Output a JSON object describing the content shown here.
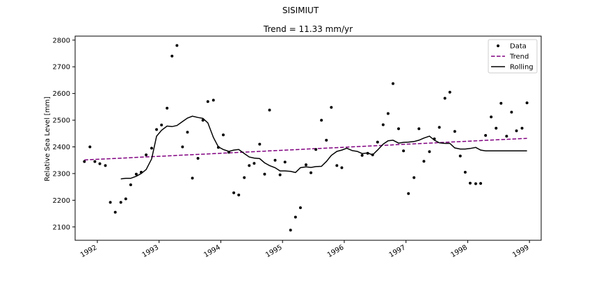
{
  "figure": {
    "suptitle": "SISIMIUT"
  },
  "chart_data": {
    "type": "scatter",
    "title": "Trend = 11.33 mm/yr",
    "xlabel": "",
    "ylabel": "Relative Sea Level [mm]",
    "xlim": [
      1991.64,
      1999.19
    ],
    "ylim": [
      2050,
      2815
    ],
    "xticks": [
      1992,
      1993,
      1994,
      1995,
      1996,
      1997,
      1998,
      1999
    ],
    "yticks": [
      2100,
      2200,
      2300,
      2400,
      2500,
      2600,
      2700,
      2800
    ],
    "grid": false,
    "legend_position": "top-right",
    "series": [
      {
        "name": "Data",
        "style": "points",
        "color": "#000000",
        "x": [
          1991.79,
          1991.88,
          1991.96,
          1992.04,
          1992.13,
          1992.21,
          1992.29,
          1992.38,
          1992.46,
          1992.54,
          1992.63,
          1992.71,
          1992.79,
          1992.88,
          1992.96,
          1993.04,
          1993.13,
          1993.21,
          1993.29,
          1993.38,
          1993.46,
          1993.54,
          1993.63,
          1993.71,
          1993.79,
          1993.88,
          1993.96,
          1994.04,
          1994.13,
          1994.21,
          1994.29,
          1994.38,
          1994.46,
          1994.54,
          1994.63,
          1994.71,
          1994.79,
          1994.88,
          1994.96,
          1995.04,
          1995.13,
          1995.21,
          1995.29,
          1995.38,
          1995.46,
          1995.54,
          1995.63,
          1995.71,
          1995.79,
          1995.88,
          1995.96,
          1996.29,
          1996.38,
          1996.46,
          1996.54,
          1996.63,
          1996.71,
          1996.79,
          1996.88,
          1996.96,
          1997.04,
          1997.13,
          1997.21,
          1997.29,
          1997.38,
          1997.46,
          1997.54,
          1997.63,
          1997.71,
          1997.79,
          1997.88,
          1997.96,
          1998.04,
          1998.13,
          1998.21,
          1998.29,
          1998.38,
          1998.46,
          1998.54,
          1998.63,
          1998.71,
          1998.79,
          1998.88,
          1998.96
        ],
        "y": [
          2345,
          2400,
          2345,
          2337,
          2330,
          2192,
          2155,
          2192,
          2205,
          2258,
          2298,
          2305,
          2370,
          2395,
          2465,
          2482,
          2545,
          2740,
          2780,
          2400,
          2455,
          2283,
          2357,
          2500,
          2570,
          2575,
          2398,
          2445,
          2380,
          2228,
          2220,
          2285,
          2330,
          2338,
          2410,
          2298,
          2538,
          2350,
          2295,
          2343,
          2088,
          2137,
          2172,
          2333,
          2303,
          2390,
          2500,
          2425,
          2548,
          2330,
          2322,
          2368,
          2376,
          2370,
          2418,
          2483,
          2525,
          2637,
          2468,
          2385,
          2225,
          2285,
          2468,
          2346,
          2382,
          2430,
          2473,
          2582,
          2605,
          2458,
          2366,
          2305,
          2264,
          2262,
          2263,
          2443,
          2512,
          2470,
          2563,
          2440,
          2530,
          2460,
          2470,
          2565
        ]
      },
      {
        "name": "Trend",
        "style": "dashed-line",
        "color": "#800080",
        "x": [
          1991.79,
          1998.96
        ],
        "y": [
          2351,
          2432
        ]
      },
      {
        "name": "Rolling",
        "style": "line",
        "color": "#000000",
        "x": [
          1992.38,
          1992.46,
          1992.54,
          1992.63,
          1992.71,
          1992.79,
          1992.88,
          1992.96,
          1993.04,
          1993.13,
          1993.21,
          1993.29,
          1993.38,
          1993.46,
          1993.54,
          1993.63,
          1993.71,
          1993.79,
          1993.88,
          1993.96,
          1994.04,
          1994.13,
          1994.21,
          1994.29,
          1994.38,
          1994.46,
          1994.54,
          1994.63,
          1994.71,
          1994.79,
          1994.88,
          1994.96,
          1995.04,
          1995.13,
          1995.21,
          1995.29,
          1995.38,
          1995.46,
          1995.54,
          1995.63,
          1995.71,
          1995.79,
          1995.88,
          1995.96,
          1996.04,
          1996.13,
          1996.21,
          1996.29,
          1996.38,
          1996.46,
          1996.54,
          1996.63,
          1996.71,
          1996.79,
          1996.88,
          1996.96,
          1997.04,
          1997.13,
          1997.21,
          1997.29,
          1997.38,
          1997.46,
          1997.54,
          1997.63,
          1997.71,
          1997.79,
          1997.88,
          1997.96,
          1998.04,
          1998.13,
          1998.21,
          1998.29,
          1998.38,
          1998.46,
          1998.54,
          1998.63,
          1998.71,
          1998.79,
          1998.88,
          1998.96
        ],
        "y": [
          2280,
          2282,
          2282,
          2290,
          2300,
          2315,
          2355,
          2440,
          2462,
          2478,
          2476,
          2480,
          2495,
          2508,
          2515,
          2510,
          2507,
          2490,
          2435,
          2400,
          2390,
          2383,
          2388,
          2390,
          2375,
          2362,
          2358,
          2356,
          2340,
          2330,
          2322,
          2310,
          2310,
          2308,
          2304,
          2322,
          2325,
          2323,
          2326,
          2327,
          2345,
          2368,
          2383,
          2388,
          2395,
          2386,
          2383,
          2375,
          2377,
          2370,
          2388,
          2410,
          2423,
          2425,
          2414,
          2417,
          2418,
          2420,
          2425,
          2433,
          2440,
          2425,
          2415,
          2413,
          2413,
          2396,
          2392,
          2392,
          2394,
          2398,
          2388,
          2385,
          2385,
          2385,
          2385,
          2385,
          2385,
          2385,
          2385,
          2385
        ]
      }
    ]
  }
}
